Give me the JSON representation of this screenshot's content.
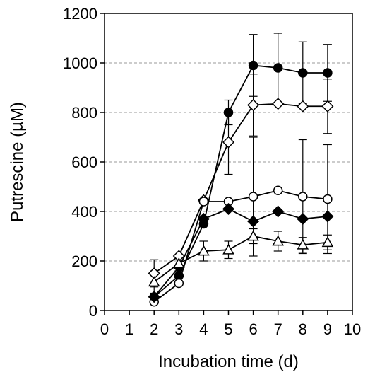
{
  "chart_data": {
    "type": "line",
    "title": "",
    "xlabel": "Incubation time (d)",
    "ylabel": "Putrescine (µM)",
    "xlim": [
      0,
      10
    ],
    "ylim": [
      0,
      1200
    ],
    "xticks": [
      0,
      1,
      2,
      3,
      4,
      5,
      6,
      7,
      8,
      9,
      10
    ],
    "yticks": [
      0,
      200,
      400,
      600,
      800,
      1000,
      1200
    ],
    "grid": "horizontal dashed",
    "x": [
      2,
      3,
      4,
      5,
      6,
      7,
      8,
      9
    ],
    "series": [
      {
        "marker": "filled-circle",
        "values": [
          55,
          140,
          350,
          800,
          990,
          980,
          960,
          960
        ],
        "error": [
          0,
          0,
          0,
          50,
          125,
          140,
          125,
          115
        ]
      },
      {
        "marker": "open-diamond",
        "values": [
          150,
          220,
          445,
          680,
          830,
          835,
          825,
          825
        ],
        "error": [
          55,
          0,
          0,
          130,
          125,
          0,
          0,
          110
        ]
      },
      {
        "marker": "open-circle",
        "values": [
          35,
          110,
          440,
          440,
          460,
          485,
          460,
          450
        ],
        "error": [
          0,
          0,
          0,
          0,
          240,
          0,
          230,
          220
        ]
      },
      {
        "marker": "filled-diamond",
        "values": [
          55,
          175,
          370,
          410,
          360,
          400,
          370,
          380
        ],
        "error": [
          0,
          0,
          0,
          0,
          0,
          0,
          0,
          0
        ]
      },
      {
        "marker": "open-triangle",
        "values": [
          115,
          190,
          240,
          245,
          300,
          280,
          265,
          275
        ],
        "error": [
          45,
          30,
          40,
          35,
          30,
          40,
          30,
          30
        ]
      }
    ]
  }
}
